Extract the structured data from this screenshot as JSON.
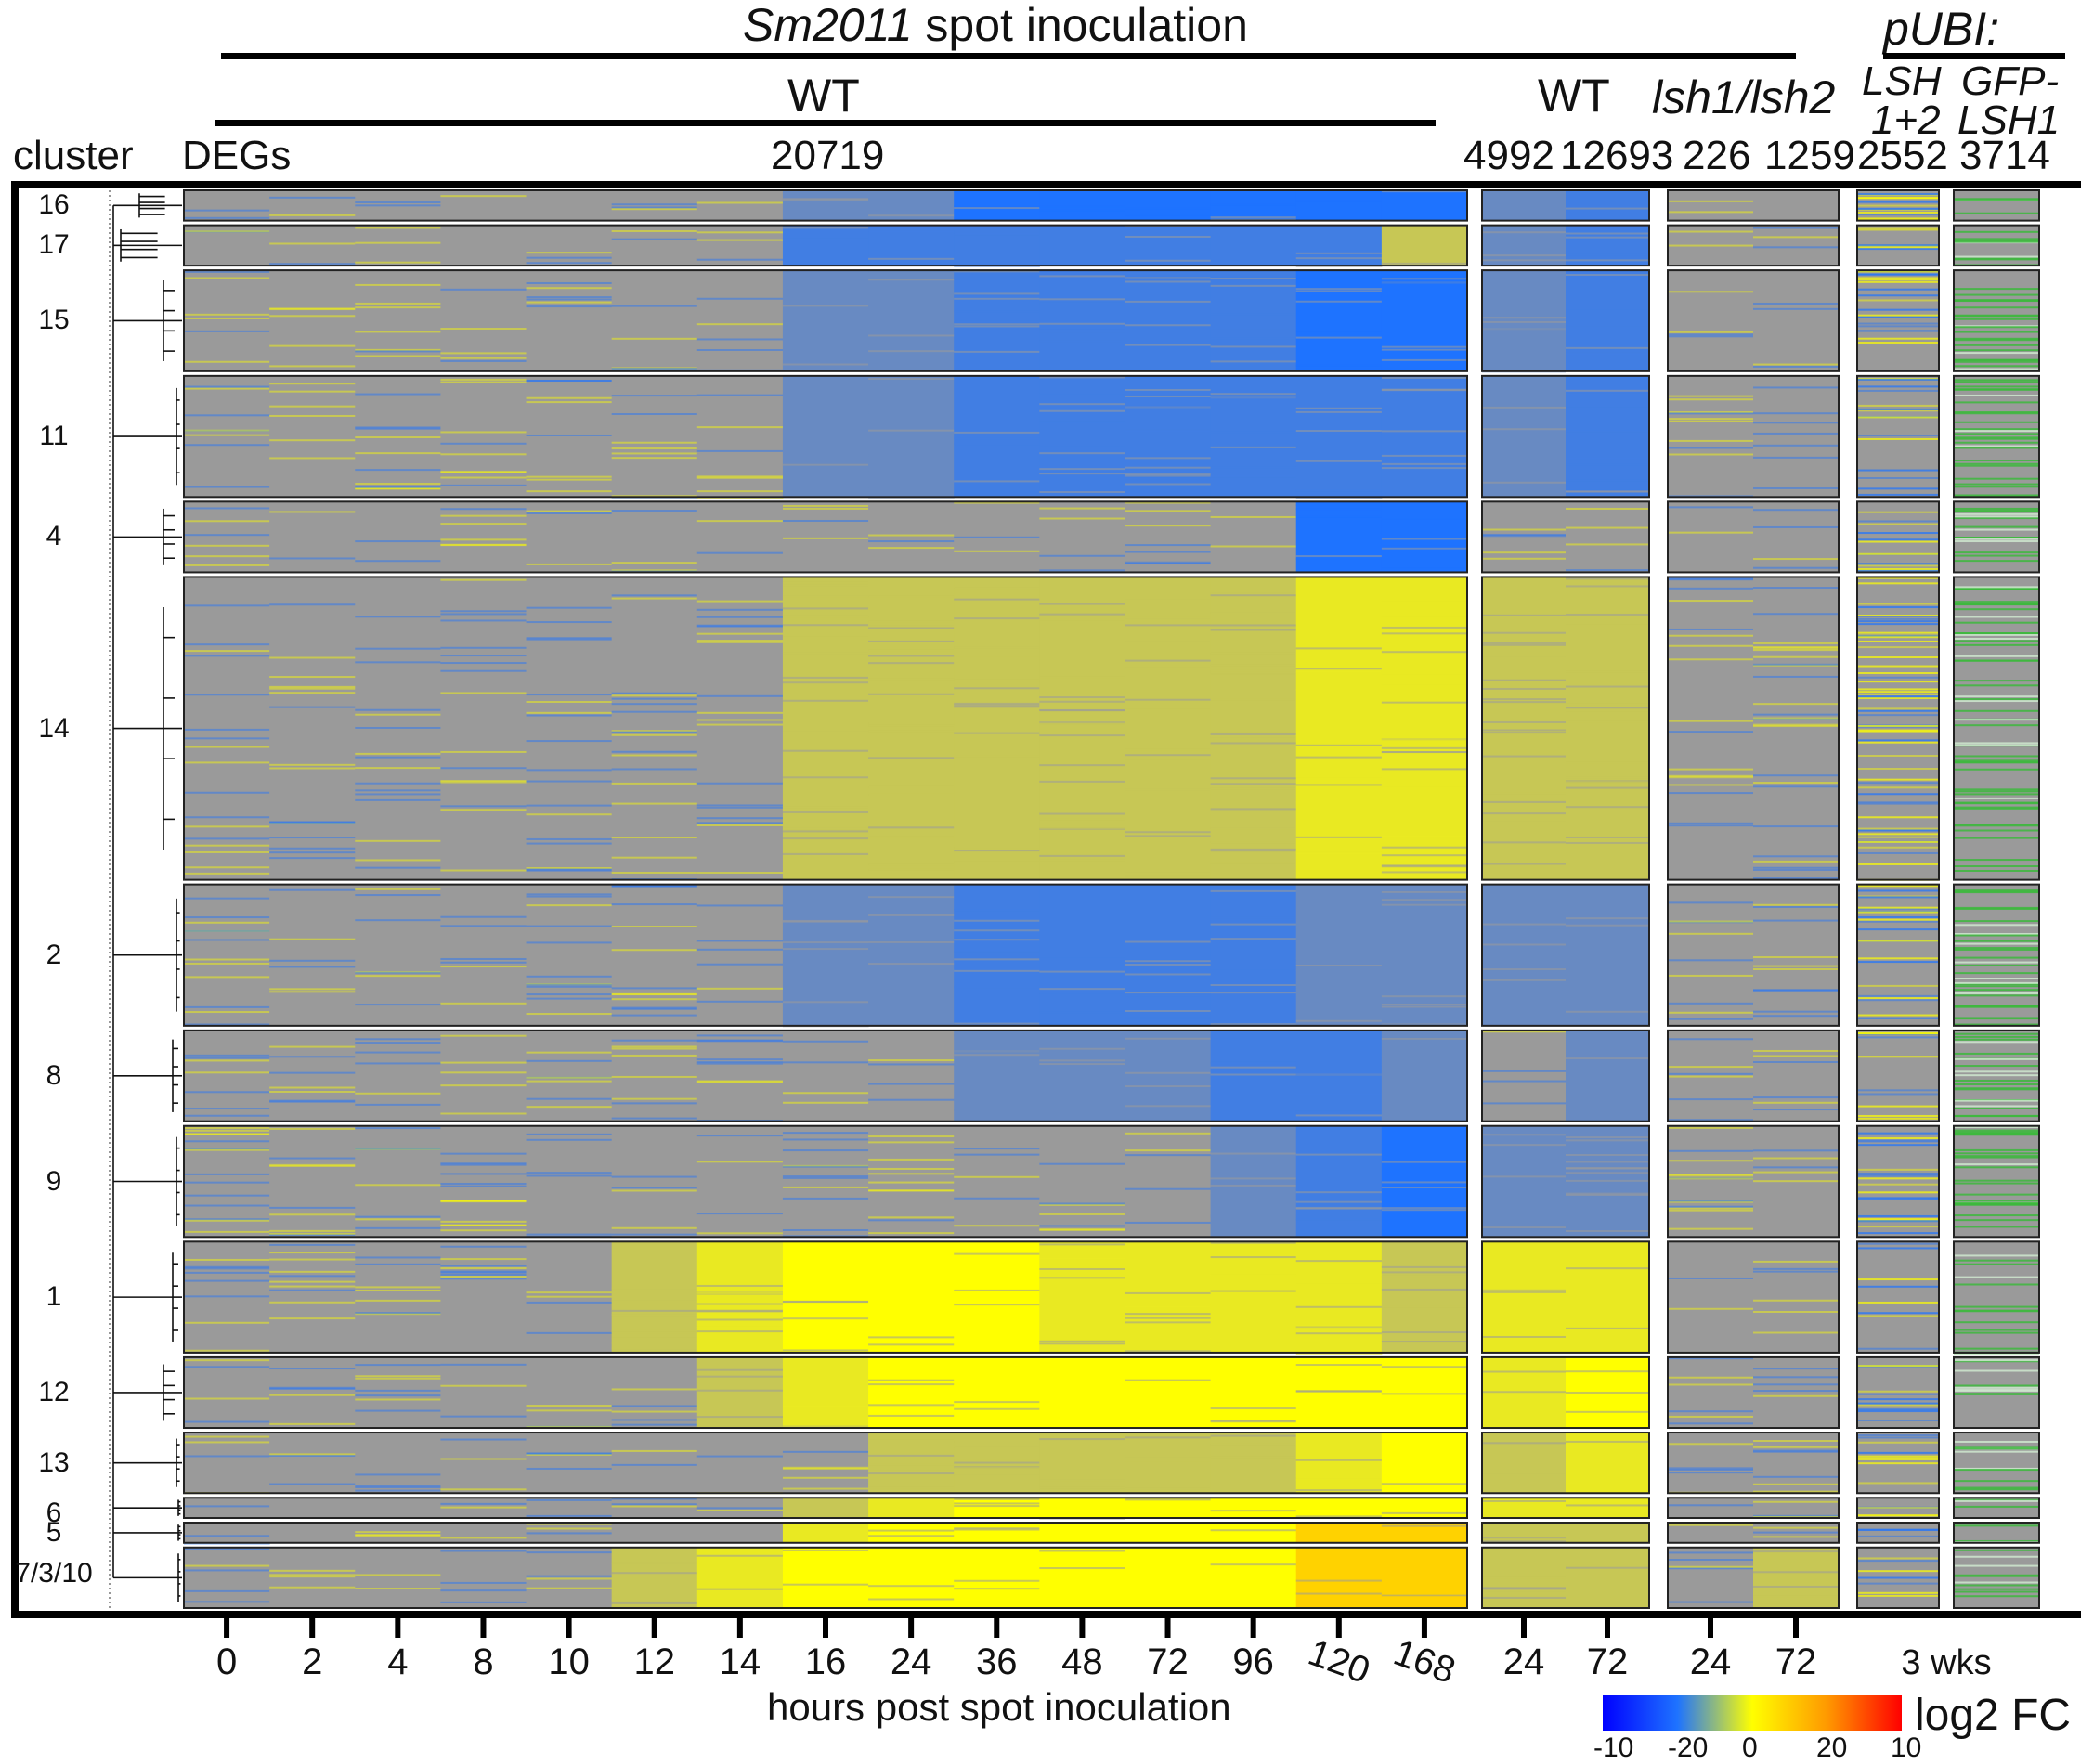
{
  "header": {
    "title_strain": "Sm2011",
    "title_rest": " spot inoculation",
    "wt_label_1": "WT",
    "wt_label_2": "WT",
    "mutant_label": "lsh1/lsh2",
    "pubi_label": "pUBI:",
    "lsh_label_1": "LSH",
    "lsh_label_2": "1+2",
    "gfp_label_1": "GFP-",
    "gfp_label_2": "LSH1",
    "cluster_label": "cluster",
    "degs_label": "DEGs"
  },
  "deg_counts": [
    "20719",
    "4992",
    "12693",
    "226",
    "1259",
    "2552",
    "3714"
  ],
  "x_axis": {
    "title": "hours post spot inoculation",
    "wt_series_ticks": [
      "0",
      "2",
      "4",
      "8",
      "10",
      "12",
      "14",
      "16",
      "24",
      "36",
      "48",
      "72",
      "96",
      "120",
      "168"
    ],
    "wt_ticks": [
      "24",
      "72"
    ],
    "mutant_ticks": [
      "24",
      "72"
    ],
    "pubi_tick": "3 wks"
  },
  "legend": {
    "label": "log2 FC",
    "ticks": [
      "-10",
      "-20",
      "0",
      "20",
      "10"
    ],
    "colors": [
      "#0000ff",
      "#1e73ff",
      "#ffff00",
      "#ff9900",
      "#ff0000"
    ]
  },
  "colors": {
    "neutral": "#9a9a9a",
    "down": "#1e73ff",
    "up": "#ffff00",
    "gfp": "#3db83d",
    "frame": "#000000"
  },
  "chart_data": {
    "type": "heatmap",
    "clusters": [
      {
        "name": "16",
        "size": 3,
        "wt": [
          0,
          0,
          0,
          0,
          0,
          0,
          0,
          -1,
          -1,
          -3,
          -3,
          -3,
          -3,
          -3,
          -3
        ],
        "wt2": [
          -1,
          -2
        ],
        "mut": [
          0,
          0
        ],
        "lsh": 1,
        "gfp": 0.6
      },
      {
        "name": "17",
        "size": 4,
        "wt": [
          0,
          0,
          0,
          0,
          0,
          0,
          0,
          -2,
          -2,
          -2,
          -2,
          -2,
          -2,
          -2,
          1
        ],
        "wt2": [
          -1,
          -2
        ],
        "mut": [
          0,
          0
        ],
        "lsh": 0.5,
        "gfp": 1
      },
      {
        "name": "15",
        "size": 10,
        "wt": [
          0,
          0,
          0,
          0,
          0,
          0,
          0,
          -1,
          -1,
          -2,
          -2,
          -2,
          -2,
          -3,
          -3
        ],
        "wt2": [
          -1,
          -2
        ],
        "mut": [
          0,
          0
        ],
        "lsh": 0.6,
        "gfp": 1
      },
      {
        "name": "11",
        "size": 12,
        "wt": [
          0,
          0,
          0,
          0,
          0,
          0,
          0,
          -1,
          -1,
          -2,
          -2,
          -2,
          -2,
          -2,
          -2
        ],
        "wt2": [
          -1,
          -2
        ],
        "mut": [
          0,
          0
        ],
        "lsh": 0.4,
        "gfp": 1
      },
      {
        "name": "4",
        "size": 7,
        "wt": [
          0,
          0,
          0,
          0,
          0,
          0,
          0,
          0,
          0,
          0,
          0,
          0,
          0,
          -3,
          -3
        ],
        "wt2": [
          0,
          0
        ],
        "mut": [
          0,
          0
        ],
        "lsh": 0.4,
        "gfp": 1
      },
      {
        "name": "14",
        "size": 30,
        "wt": [
          0,
          0,
          0,
          0,
          0,
          0,
          0,
          1,
          1,
          1,
          1,
          1,
          1,
          2,
          2
        ],
        "wt2": [
          1,
          1
        ],
        "mut": [
          0,
          0
        ],
        "lsh": 0.5,
        "gfp": 0.8
      },
      {
        "name": "2",
        "size": 14,
        "wt": [
          0,
          0,
          0,
          0,
          0,
          0,
          0,
          -1,
          -1,
          -2,
          -2,
          -2,
          -2,
          -1,
          -1
        ],
        "wt2": [
          -1,
          -1
        ],
        "mut": [
          0,
          0
        ],
        "lsh": 0.5,
        "gfp": 1
      },
      {
        "name": "8",
        "size": 9,
        "wt": [
          0,
          0,
          0,
          0,
          0,
          0,
          0,
          0,
          0,
          -1,
          -1,
          -1,
          -2,
          -2,
          -1
        ],
        "wt2": [
          0,
          -1
        ],
        "mut": [
          0,
          0
        ],
        "lsh": 0.3,
        "gfp": 1
      },
      {
        "name": "9",
        "size": 11,
        "wt": [
          0,
          0,
          0,
          0,
          0,
          0,
          0,
          0,
          0,
          0,
          0,
          0,
          -1,
          -2,
          -3
        ],
        "wt2": [
          -1,
          -1
        ],
        "mut": [
          0,
          0
        ],
        "lsh": 0.5,
        "gfp": 1
      },
      {
        "name": "1",
        "size": 11,
        "wt": [
          0,
          0,
          0,
          0,
          0,
          1,
          2,
          3,
          3,
          3,
          2,
          2,
          2,
          2,
          1
        ],
        "wt2": [
          2,
          2
        ],
        "mut": [
          0,
          0
        ],
        "lsh": 0.2,
        "gfp": 0.6
      },
      {
        "name": "12",
        "size": 7,
        "wt": [
          0,
          0,
          0,
          0,
          0,
          0,
          1,
          2,
          3,
          3,
          3,
          3,
          3,
          3,
          3
        ],
        "wt2": [
          2,
          3
        ],
        "mut": [
          0,
          0
        ],
        "lsh": 0.3,
        "gfp": 0.6
      },
      {
        "name": "13",
        "size": 6,
        "wt": [
          0,
          0,
          0,
          0,
          0,
          0,
          0,
          0,
          1,
          1,
          1,
          1,
          1,
          2,
          3
        ],
        "wt2": [
          1,
          2
        ],
        "mut": [
          0,
          0
        ],
        "lsh": 0.3,
        "gfp": 0.8
      },
      {
        "name": "6",
        "size": 2,
        "wt": [
          0,
          0,
          0,
          0,
          0,
          0,
          0,
          1,
          2,
          3,
          3,
          3,
          3,
          3,
          3
        ],
        "wt2": [
          2,
          2
        ],
        "mut": [
          0,
          0
        ],
        "lsh": 0.3,
        "gfp": 0.8
      },
      {
        "name": "5",
        "size": 2,
        "wt": [
          0,
          0,
          0,
          0,
          0,
          0,
          0,
          2,
          3,
          3,
          3,
          3,
          3,
          4,
          4
        ],
        "wt2": [
          1,
          1
        ],
        "mut": [
          0,
          0
        ],
        "lsh": 0.3,
        "gfp": 0.8
      },
      {
        "name": "7/3/10",
        "size": 6,
        "wt": [
          0,
          0,
          0,
          0,
          0,
          1,
          2,
          3,
          3,
          3,
          3,
          3,
          3,
          4,
          4
        ],
        "wt2": [
          1,
          1
        ],
        "mut": [
          0,
          1
        ],
        "lsh": 0.3,
        "gfp": 0.8
      }
    ]
  }
}
